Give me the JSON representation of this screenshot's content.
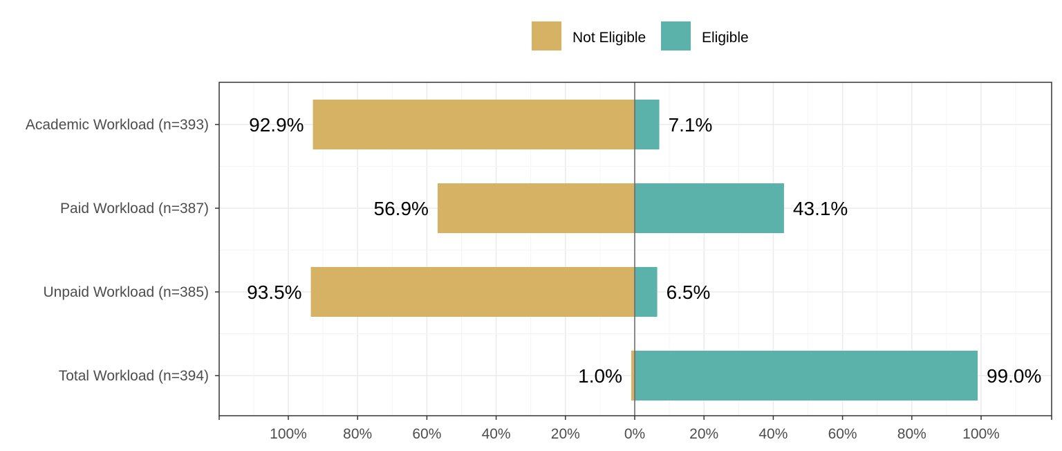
{
  "chart_data": {
    "type": "bar",
    "orientation": "horizontal-diverging",
    "categories": [
      "Academic Workload (n=393)",
      "Paid Workload (n=387)",
      "Unpaid Workload (n=385)",
      "Total Workload (n=394)"
    ],
    "series": [
      {
        "name": "Not Eligible",
        "side": "left",
        "color": "#D6B264",
        "values": [
          92.9,
          56.9,
          93.5,
          1.0
        ],
        "labels": [
          "92.9%",
          "56.9%",
          "93.5%",
          "1.0%"
        ]
      },
      {
        "name": "Eligible",
        "side": "right",
        "color": "#5AB2AA",
        "values": [
          7.1,
          43.1,
          6.5,
          99.0
        ],
        "labels": [
          "7.1%",
          "43.1%",
          "6.5%",
          "99.0%"
        ]
      }
    ],
    "xlim": [
      -120,
      120
    ],
    "x_ticks": [
      -100,
      -80,
      -60,
      -40,
      -20,
      0,
      20,
      40,
      60,
      80,
      100
    ],
    "x_tick_labels": [
      "100%",
      "80%",
      "60%",
      "40%",
      "20%",
      "0%",
      "20%",
      "40%",
      "60%",
      "80%",
      "100%"
    ],
    "legend": {
      "position": "top",
      "entries": [
        "Not Eligible",
        "Eligible"
      ]
    },
    "grid": true,
    "title": "",
    "xlabel": "",
    "ylabel": ""
  }
}
